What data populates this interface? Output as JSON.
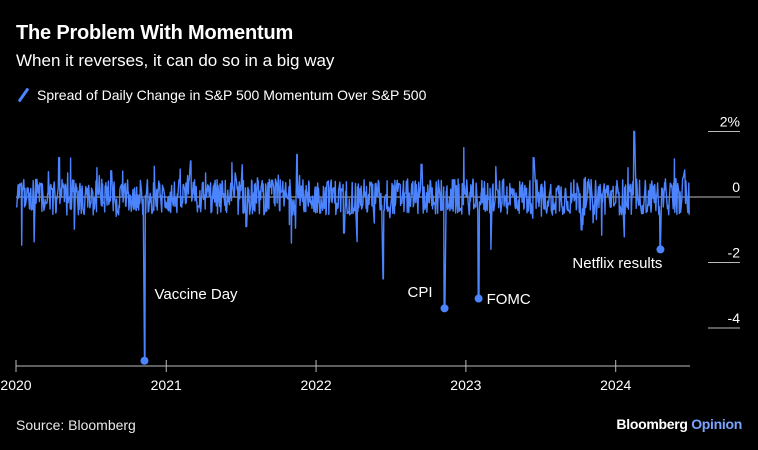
{
  "header": {
    "title": "The Problem With Momentum",
    "subtitle": "When it reverses, it can do so in a big way"
  },
  "footer": {
    "source": "Source: Bloomberg",
    "brand_main": "Bloomberg",
    "brand_sub": "Opinion"
  },
  "colors": {
    "background": "#000000",
    "series": "#4c84ff",
    "text": "#ffffff",
    "axis": "#bbbbbb"
  },
  "chart_data": {
    "type": "line",
    "title": "The Problem With Momentum",
    "subtitle": "When it reverses, it can do so in a big way",
    "series": [
      {
        "name": "Spread of Daily Change in S&P 500 Momentum Over S&P 500",
        "x": [
          "2020-01-02",
          "2020-04-15",
          "2020-08-20",
          "2020-11-09",
          "2021-03-01",
          "2021-07-15",
          "2021-11-15",
          "2022-03-10",
          "2022-06-13",
          "2022-09-15",
          "2022-11-10",
          "2023-02-01",
          "2023-06-15",
          "2023-10-10",
          "2024-02-15",
          "2024-04-19",
          "2024-06-14"
        ],
        "values": [
          -0.3,
          1.2,
          0.8,
          -5.0,
          1.1,
          -0.9,
          1.3,
          -1.1,
          -2.5,
          1.0,
          -3.4,
          -3.1,
          1.2,
          -1.0,
          2.0,
          -1.6,
          0.6
        ]
      }
    ],
    "annotations": [
      {
        "date": "2020-11-09",
        "value": -5.0,
        "label": "Vaccine Day"
      },
      {
        "date": "2022-11-10",
        "value": -3.4,
        "label": "CPI"
      },
      {
        "date": "2023-02-01",
        "value": -3.1,
        "label": "FOMC"
      },
      {
        "date": "2024-04-19",
        "value": -1.6,
        "label": "Netflix results"
      }
    ],
    "x_ticks": [
      "2020",
      "2021",
      "2022",
      "2023",
      "2024"
    ],
    "y_ticks": [
      {
        "value": 2,
        "label": "2%"
      },
      {
        "value": 0,
        "label": "0"
      },
      {
        "value": -2,
        "label": "-2"
      },
      {
        "value": -4,
        "label": "-4"
      }
    ],
    "xlim": [
      "2020-01-01",
      "2024-06-30"
    ],
    "ylim": [
      -5,
      2.5
    ],
    "grid": false,
    "legend_position": "top-left"
  }
}
